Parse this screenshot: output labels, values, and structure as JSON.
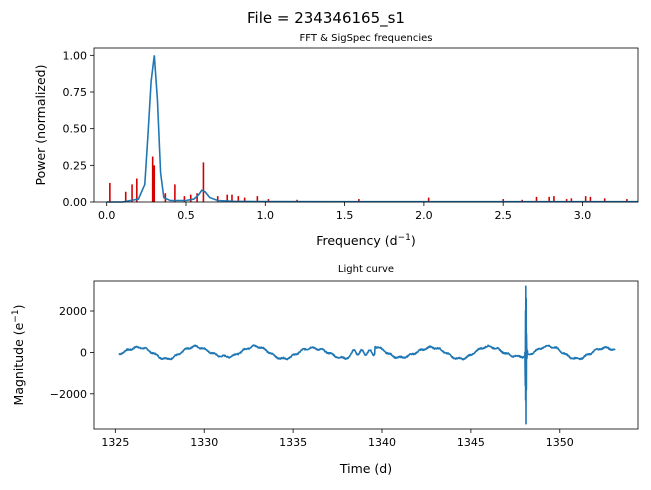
{
  "suptitle": "File = 234346165_s1",
  "colors": {
    "fft_line": "#1f77b4",
    "sigspec": "#d40000",
    "lightcurve": "#1f77b4"
  },
  "chart_data": [
    {
      "type": "line",
      "title": "FFT & SigSpec frequencies",
      "xlabel": "Frequency (d",
      "xlabel_sup": "−1",
      "xlabel_close": ")",
      "ylabel": "Power (normalized)",
      "xlim": [
        -0.08,
        3.35
      ],
      "ylim": [
        0,
        1.05
      ],
      "xticks": [
        0.0,
        0.5,
        1.0,
        1.5,
        2.0,
        2.5,
        3.0
      ],
      "xtick_labels": [
        "0.0",
        "0.5",
        "1.0",
        "1.5",
        "2.0",
        "2.5",
        "3.0"
      ],
      "yticks": [
        0.0,
        0.25,
        0.5,
        0.75,
        1.0
      ],
      "ytick_labels": [
        "0.00",
        "0.25",
        "0.50",
        "0.75",
        "1.00"
      ],
      "fft_series": {
        "x": [
          0.0,
          0.05,
          0.1,
          0.15,
          0.2,
          0.24,
          0.26,
          0.28,
          0.3,
          0.32,
          0.34,
          0.36,
          0.4,
          0.45,
          0.5,
          0.55,
          0.58,
          0.6,
          0.62,
          0.65,
          0.7,
          0.8,
          1.0,
          1.5,
          2.0,
          2.5,
          3.0,
          3.35
        ],
        "y": [
          0.0,
          0.0,
          0.0,
          0.01,
          0.02,
          0.12,
          0.45,
          0.82,
          1.0,
          0.7,
          0.2,
          0.03,
          0.01,
          0.01,
          0.01,
          0.02,
          0.05,
          0.08,
          0.07,
          0.03,
          0.01,
          0.005,
          0.003,
          0.002,
          0.002,
          0.002,
          0.002,
          0.002
        ]
      },
      "sigspec_peaks": {
        "x": [
          0.02,
          0.12,
          0.16,
          0.19,
          0.29,
          0.3,
          0.37,
          0.43,
          0.49,
          0.53,
          0.57,
          0.61,
          0.7,
          0.76,
          0.79,
          0.83,
          0.87,
          0.95,
          1.02,
          1.2,
          1.59,
          2.03,
          2.5,
          2.62,
          2.71,
          2.79,
          2.82,
          2.9,
          2.93,
          3.02,
          3.05,
          3.14,
          3.28
        ],
        "y": [
          0.13,
          0.07,
          0.12,
          0.16,
          0.31,
          0.25,
          0.06,
          0.12,
          0.04,
          0.05,
          0.06,
          0.27,
          0.04,
          0.05,
          0.05,
          0.04,
          0.03,
          0.04,
          0.02,
          0.015,
          0.02,
          0.03,
          0.02,
          0.015,
          0.035,
          0.035,
          0.04,
          0.02,
          0.025,
          0.04,
          0.035,
          0.025,
          0.02
        ]
      }
    },
    {
      "type": "line",
      "title": "Light curve",
      "xlabel": "Time (d)",
      "ylabel": "Magnitude (e",
      "ylabel_sup": "−1",
      "ylabel_close": ")",
      "xlim": [
        1323.8,
        1354.4
      ],
      "ylim": [
        -3700,
        3450
      ],
      "xticks": [
        1325,
        1330,
        1335,
        1340,
        1345,
        1350
      ],
      "xtick_labels": [
        "1325",
        "1330",
        "1335",
        "1340",
        "1345",
        "1350"
      ],
      "yticks": [
        -2000,
        0,
        2000
      ],
      "ytick_labels": [
        "−2000",
        "0",
        "2000"
      ],
      "series": {
        "name": "",
        "t_start": 1325.2,
        "t_end": 1353.1,
        "approx_period_days": 3.3,
        "approx_amplitude": 330,
        "outburst_time": 1348.1,
        "outburst_max": 3200,
        "outburst_min": -3450
      }
    }
  ]
}
